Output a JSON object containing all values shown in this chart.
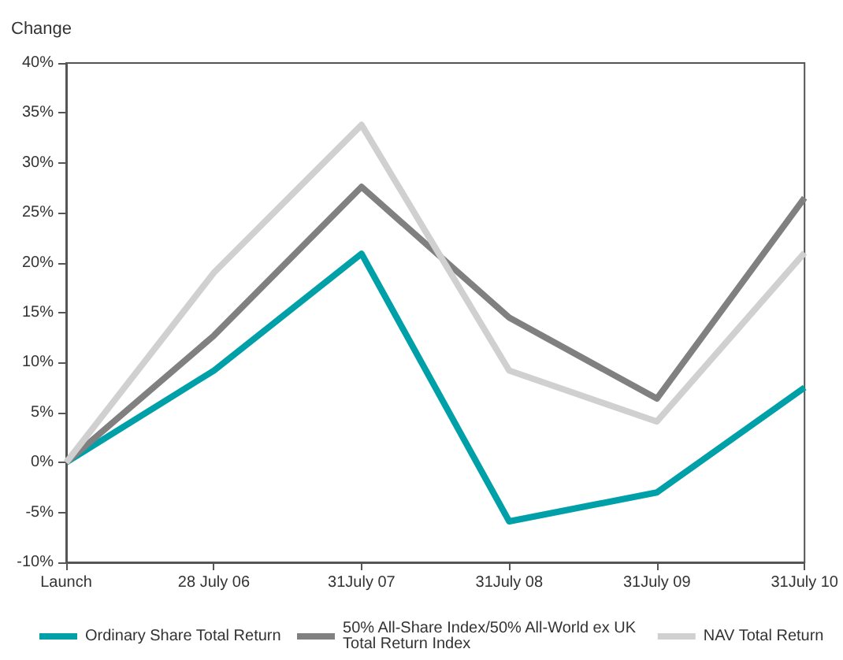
{
  "chart_data": {
    "type": "line",
    "ylabel": "Change",
    "categories": [
      "Launch",
      "28 July 06",
      "31July 07",
      "31July 08",
      "31July 09",
      "31July 10"
    ],
    "series": [
      {
        "name": "Ordinary Share Total Return",
        "color": "#00a0a8",
        "values": [
          0,
          9.2,
          20.9,
          -5.9,
          -3.0,
          7.5
        ]
      },
      {
        "name": "50% All-Share Index/50% All-World ex UK Total Return Index",
        "color": "#808080",
        "values": [
          0,
          12.7,
          27.6,
          14.5,
          6.4,
          26.5
        ]
      },
      {
        "name": "NAV Total Return",
        "color": "#d0d0d0",
        "values": [
          0,
          19.0,
          33.8,
          9.2,
          4.1,
          21.0
        ]
      }
    ],
    "ylim": [
      -10,
      40
    ],
    "yticks": [
      {
        "value": -10,
        "label": "-10%"
      },
      {
        "value": -5,
        "label": "-5%"
      },
      {
        "value": 0,
        "label": "0%"
      },
      {
        "value": 5,
        "label": "5%"
      },
      {
        "value": 10,
        "label": "10%"
      },
      {
        "value": 15,
        "label": "15%"
      },
      {
        "value": 20,
        "label": "20%"
      },
      {
        "value": 25,
        "label": "25%"
      },
      {
        "value": 30,
        "label": "30%"
      },
      {
        "value": 35,
        "label": "35%"
      },
      {
        "value": 40,
        "label": "40%"
      }
    ],
    "grid": false,
    "legend": "bottom",
    "marker": "none",
    "line_style": "solid"
  }
}
